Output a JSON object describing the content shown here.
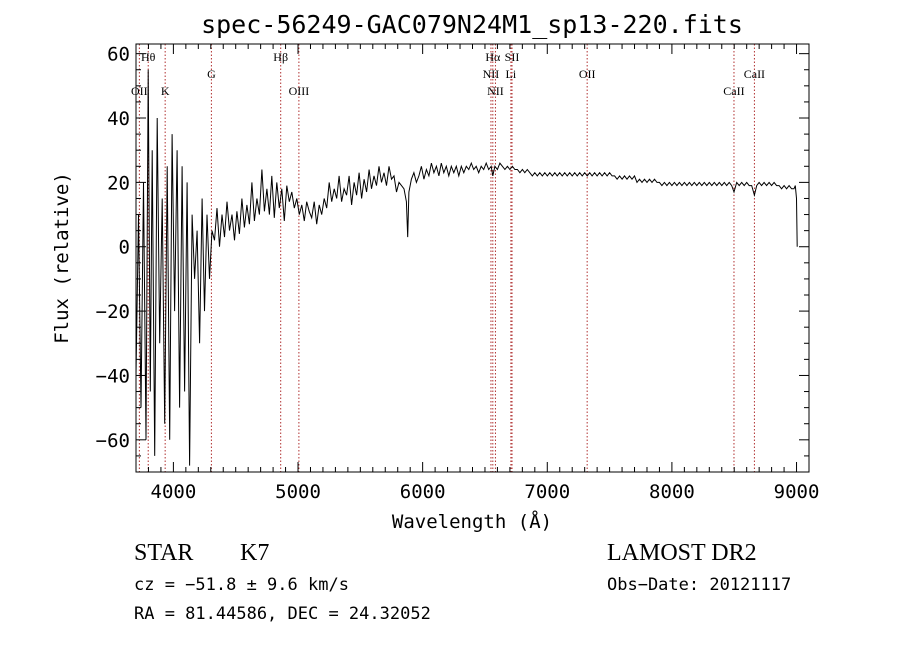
{
  "chart_data": {
    "type": "line",
    "title": "spec-56249-GAC079N24M1_sp13-220.fits",
    "xlabel": "Wavelength (Å)",
    "ylabel": "Flux (relative)",
    "xlim": [
      3700,
      9100
    ],
    "ylim": [
      -70,
      63
    ],
    "xticks": [
      "4000",
      "5000",
      "6000",
      "7000",
      "8000",
      "9000"
    ],
    "yticks": [
      "60",
      "40",
      "20",
      "0",
      "−20",
      "−40",
      "−60"
    ],
    "xtick_values": [
      4000,
      5000,
      6000,
      7000,
      8000,
      9000
    ],
    "ytick_values": [
      60,
      40,
      20,
      0,
      -20,
      -40,
      -60
    ],
    "line_color": "#000000",
    "marker_color": "#b03030",
    "spectral_lines": [
      {
        "label": "Hθ",
        "wavelength": 3798,
        "row": "top"
      },
      {
        "label": "OII",
        "wavelength": 3727,
        "row": "bottom"
      },
      {
        "label": "K",
        "wavelength": 3934,
        "row": "bottom"
      },
      {
        "label": "G",
        "wavelength": 4305,
        "row": "mid"
      },
      {
        "label": "Hβ",
        "wavelength": 4861,
        "row": "top"
      },
      {
        "label": "OIII",
        "wavelength": 5007,
        "row": "bottom"
      },
      {
        "label": "Hα",
        "wavelength": 6563,
        "row": "top"
      },
      {
        "label": "SII",
        "wavelength": 6717,
        "row": "top"
      },
      {
        "label": "NII",
        "wavelength": 6548,
        "row": "mid"
      },
      {
        "label": "Li",
        "wavelength": 6708,
        "row": "mid"
      },
      {
        "label": "NII",
        "wavelength": 6584,
        "row": "bottom"
      },
      {
        "label": "OII",
        "wavelength": 7320,
        "row": "mid"
      },
      {
        "label": "CaII",
        "wavelength": 8498,
        "row": "bottom"
      },
      {
        "label": "CaII",
        "wavelength": 8662,
        "row": "mid"
      }
    ],
    "series": [
      {
        "values": [
          [
            3700,
            -40
          ],
          [
            3720,
            10
          ],
          [
            3740,
            -50
          ],
          [
            3760,
            20
          ],
          [
            3780,
            -60
          ],
          [
            3798,
            55
          ],
          [
            3815,
            -45
          ],
          [
            3830,
            30
          ],
          [
            3850,
            -65
          ],
          [
            3870,
            40
          ],
          [
            3890,
            -30
          ],
          [
            3910,
            15
          ],
          [
            3930,
            -55
          ],
          [
            3950,
            25
          ],
          [
            3970,
            -60
          ],
          [
            3990,
            35
          ],
          [
            4010,
            -20
          ],
          [
            4030,
            30
          ],
          [
            4050,
            -50
          ],
          [
            4070,
            25
          ],
          [
            4090,
            -45
          ],
          [
            4110,
            20
          ],
          [
            4130,
            -68
          ],
          [
            4150,
            10
          ],
          [
            4170,
            -10
          ],
          [
            4190,
            5
          ],
          [
            4210,
            -30
          ],
          [
            4230,
            15
          ],
          [
            4250,
            -20
          ],
          [
            4270,
            10
          ],
          [
            4290,
            -10
          ],
          [
            4310,
            5
          ],
          [
            4330,
            2
          ],
          [
            4350,
            12
          ],
          [
            4370,
            0
          ],
          [
            4390,
            10
          ],
          [
            4410,
            3
          ],
          [
            4430,
            14
          ],
          [
            4450,
            5
          ],
          [
            4470,
            10
          ],
          [
            4490,
            2
          ],
          [
            4510,
            11
          ],
          [
            4530,
            4
          ],
          [
            4550,
            15
          ],
          [
            4570,
            6
          ],
          [
            4590,
            13
          ],
          [
            4610,
            7
          ],
          [
            4630,
            20
          ],
          [
            4650,
            8
          ],
          [
            4670,
            15
          ],
          [
            4690,
            10
          ],
          [
            4710,
            24
          ],
          [
            4730,
            11
          ],
          [
            4750,
            18
          ],
          [
            4770,
            10
          ],
          [
            4790,
            22
          ],
          [
            4810,
            9
          ],
          [
            4830,
            20
          ],
          [
            4850,
            12
          ],
          [
            4870,
            18
          ],
          [
            4890,
            8
          ],
          [
            4910,
            19
          ],
          [
            4930,
            14
          ],
          [
            4950,
            17
          ],
          [
            4970,
            12
          ],
          [
            4990,
            15
          ],
          [
            5010,
            10
          ],
          [
            5030,
            13
          ],
          [
            5050,
            8
          ],
          [
            5070,
            14
          ],
          [
            5090,
            11
          ],
          [
            5110,
            9
          ],
          [
            5130,
            14
          ],
          [
            5150,
            7
          ],
          [
            5170,
            13
          ],
          [
            5190,
            10
          ],
          [
            5210,
            15
          ],
          [
            5230,
            12
          ],
          [
            5250,
            20
          ],
          [
            5270,
            14
          ],
          [
            5290,
            18
          ],
          [
            5310,
            15
          ],
          [
            5330,
            22
          ],
          [
            5350,
            14
          ],
          [
            5370,
            18
          ],
          [
            5390,
            16
          ],
          [
            5410,
            22
          ],
          [
            5430,
            13
          ],
          [
            5450,
            20
          ],
          [
            5470,
            16
          ],
          [
            5490,
            23
          ],
          [
            5510,
            15
          ],
          [
            5530,
            21
          ],
          [
            5550,
            17
          ],
          [
            5570,
            24
          ],
          [
            5590,
            18
          ],
          [
            5610,
            22
          ],
          [
            5630,
            19
          ],
          [
            5650,
            25
          ],
          [
            5670,
            20
          ],
          [
            5690,
            23
          ],
          [
            5710,
            19
          ],
          [
            5730,
            25
          ],
          [
            5750,
            21
          ],
          [
            5770,
            22
          ],
          [
            5790,
            17
          ],
          [
            5810,
            20
          ],
          [
            5830,
            19
          ],
          [
            5850,
            18
          ],
          [
            5870,
            14
          ],
          [
            5880,
            3
          ],
          [
            5890,
            17
          ],
          [
            5910,
            21
          ],
          [
            5930,
            23
          ],
          [
            5950,
            20
          ],
          [
            5970,
            22
          ],
          [
            5990,
            25
          ],
          [
            6010,
            21
          ],
          [
            6030,
            24
          ],
          [
            6050,
            22
          ],
          [
            6070,
            26
          ],
          [
            6090,
            23
          ],
          [
            6110,
            25
          ],
          [
            6130,
            22
          ],
          [
            6150,
            26
          ],
          [
            6170,
            23
          ],
          [
            6190,
            25
          ],
          [
            6210,
            22
          ],
          [
            6230,
            25
          ],
          [
            6250,
            23
          ],
          [
            6270,
            25
          ],
          [
            6290,
            22
          ],
          [
            6310,
            25
          ],
          [
            6330,
            23
          ],
          [
            6350,
            25
          ],
          [
            6370,
            24
          ],
          [
            6390,
            26
          ],
          [
            6410,
            24
          ],
          [
            6430,
            25
          ],
          [
            6450,
            23
          ],
          [
            6470,
            25
          ],
          [
            6490,
            24
          ],
          [
            6510,
            26
          ],
          [
            6530,
            24
          ],
          [
            6550,
            25
          ],
          [
            6563,
            22
          ],
          [
            6580,
            25
          ],
          [
            6600,
            24
          ],
          [
            6620,
            26
          ],
          [
            6640,
            25
          ],
          [
            6660,
            24
          ],
          [
            6680,
            25
          ],
          [
            6700,
            24
          ],
          [
            6720,
            25
          ],
          [
            6740,
            24
          ],
          [
            6760,
            24
          ],
          [
            6780,
            23
          ],
          [
            6800,
            24
          ],
          [
            6820,
            23
          ],
          [
            6840,
            24
          ],
          [
            6860,
            23
          ],
          [
            6880,
            22
          ],
          [
            6900,
            23
          ],
          [
            6920,
            22
          ],
          [
            6940,
            23
          ],
          [
            6960,
            22
          ],
          [
            6980,
            23
          ],
          [
            7000,
            22
          ],
          [
            7020,
            23
          ],
          [
            7040,
            22
          ],
          [
            7060,
            23
          ],
          [
            7080,
            22
          ],
          [
            7100,
            23
          ],
          [
            7120,
            22
          ],
          [
            7140,
            23
          ],
          [
            7160,
            22
          ],
          [
            7180,
            23
          ],
          [
            7200,
            22
          ],
          [
            7220,
            23
          ],
          [
            7240,
            22
          ],
          [
            7260,
            23
          ],
          [
            7280,
            22
          ],
          [
            7300,
            23
          ],
          [
            7320,
            22
          ],
          [
            7340,
            23
          ],
          [
            7360,
            22
          ],
          [
            7380,
            23
          ],
          [
            7400,
            22
          ],
          [
            7420,
            23
          ],
          [
            7440,
            22
          ],
          [
            7460,
            23
          ],
          [
            7480,
            22
          ],
          [
            7500,
            23
          ],
          [
            7520,
            22
          ],
          [
            7540,
            22
          ],
          [
            7560,
            21
          ],
          [
            7580,
            22
          ],
          [
            7600,
            21
          ],
          [
            7620,
            22
          ],
          [
            7640,
            21
          ],
          [
            7660,
            22
          ],
          [
            7680,
            21
          ],
          [
            7700,
            22
          ],
          [
            7720,
            20
          ],
          [
            7740,
            21
          ],
          [
            7760,
            20
          ],
          [
            7780,
            21
          ],
          [
            7800,
            20
          ],
          [
            7820,
            21
          ],
          [
            7840,
            20
          ],
          [
            7860,
            21
          ],
          [
            7880,
            20
          ],
          [
            7900,
            20
          ],
          [
            7920,
            19
          ],
          [
            7940,
            20
          ],
          [
            7960,
            19
          ],
          [
            7980,
            20
          ],
          [
            8000,
            19
          ],
          [
            8020,
            20
          ],
          [
            8040,
            19
          ],
          [
            8060,
            20
          ],
          [
            8080,
            19
          ],
          [
            8100,
            20
          ],
          [
            8120,
            19
          ],
          [
            8140,
            20
          ],
          [
            8160,
            19
          ],
          [
            8180,
            20
          ],
          [
            8200,
            19
          ],
          [
            8220,
            20
          ],
          [
            8240,
            19
          ],
          [
            8260,
            20
          ],
          [
            8280,
            19
          ],
          [
            8300,
            20
          ],
          [
            8320,
            19
          ],
          [
            8340,
            20
          ],
          [
            8360,
            19
          ],
          [
            8380,
            20
          ],
          [
            8400,
            19
          ],
          [
            8420,
            20
          ],
          [
            8440,
            19
          ],
          [
            8460,
            20
          ],
          [
            8480,
            19
          ],
          [
            8498,
            17
          ],
          [
            8520,
            20
          ],
          [
            8540,
            19
          ],
          [
            8560,
            20
          ],
          [
            8580,
            19
          ],
          [
            8600,
            20
          ],
          [
            8620,
            19
          ],
          [
            8640,
            19
          ],
          [
            8662,
            16
          ],
          [
            8680,
            19
          ],
          [
            8700,
            20
          ],
          [
            8720,
            19
          ],
          [
            8740,
            20
          ],
          [
            8760,
            19
          ],
          [
            8780,
            20
          ],
          [
            8800,
            19
          ],
          [
            8820,
            20
          ],
          [
            8840,
            19
          ],
          [
            8860,
            19
          ],
          [
            8880,
            18
          ],
          [
            8900,
            19
          ],
          [
            8920,
            18
          ],
          [
            8940,
            19
          ],
          [
            8960,
            18
          ],
          [
            8980,
            18
          ],
          [
            8990,
            19
          ],
          [
            9000,
            15
          ],
          [
            9005,
            0
          ]
        ]
      }
    ]
  },
  "info": {
    "object_class": "STAR",
    "subclass": "K7",
    "survey": "LAMOST DR2",
    "cz": "cz = −51.8 ± 9.6 km/s",
    "obs_date": "Obs−Date: 20121117",
    "coords": "RA =  81.44586, DEC =  24.32052"
  }
}
